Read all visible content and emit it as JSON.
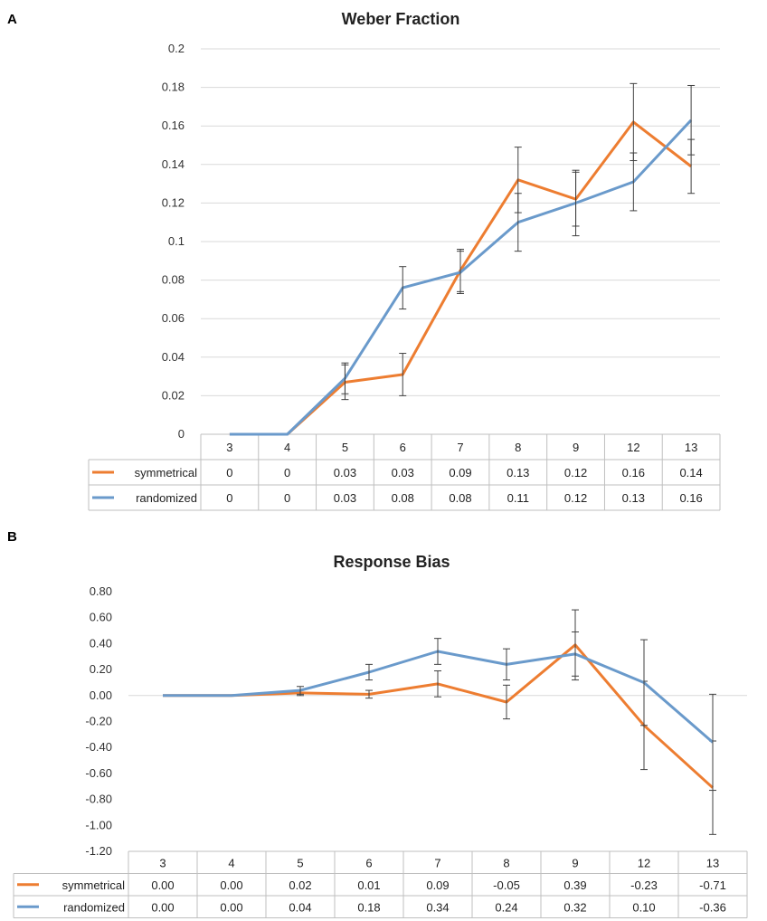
{
  "colors": {
    "symmetrical": "#ED7D31",
    "randomized": "#6A9ACB"
  },
  "chart_data": [
    {
      "type": "line",
      "panel": "A",
      "title": "Weber Fraction",
      "categories": [
        "3",
        "4",
        "5",
        "6",
        "7",
        "8",
        "9",
        "12",
        "13"
      ],
      "ylim": [
        0,
        0.2
      ],
      "yticks": [
        "0",
        "0.02",
        "0.04",
        "0.06",
        "0.08",
        "0.1",
        "0.12",
        "0.14",
        "0.16",
        "0.18",
        "0.2"
      ],
      "grid": true,
      "legend": "data-table",
      "series": [
        {
          "name": "symmetrical",
          "color": "#ED7D31",
          "values": [
            0,
            0,
            0.027,
            0.031,
            0.085,
            0.132,
            0.122,
            0.162,
            0.139
          ],
          "errors": [
            0,
            0,
            0.009,
            0.011,
            0.011,
            0.017,
            0.014,
            0.02,
            0.014
          ],
          "table_values": [
            "0",
            "0",
            "0.03",
            "0.03",
            "0.09",
            "0.13",
            "0.12",
            "0.16",
            "0.14"
          ]
        },
        {
          "name": "randomized",
          "color": "#6A9ACB",
          "values": [
            0,
            0,
            0.029,
            0.076,
            0.084,
            0.11,
            0.12,
            0.131,
            0.163
          ],
          "errors": [
            0,
            0,
            0.008,
            0.011,
            0.011,
            0.015,
            0.017,
            0.015,
            0.018
          ],
          "table_values": [
            "0",
            "0",
            "0.03",
            "0.08",
            "0.08",
            "0.11",
            "0.12",
            "0.13",
            "0.16"
          ]
        }
      ]
    },
    {
      "type": "line",
      "panel": "B",
      "title": "Response Bias",
      "categories": [
        "3",
        "4",
        "5",
        "6",
        "7",
        "8",
        "9",
        "12",
        "13"
      ],
      "ylim": [
        -1.2,
        0.8
      ],
      "yticks": [
        "-1.20",
        "-1.00",
        "-0.80",
        "-0.60",
        "-0.40",
        "-0.20",
        "0.00",
        "0.20",
        "0.40",
        "0.60",
        "0.80"
      ],
      "grid": false,
      "legend": "data-table",
      "series": [
        {
          "name": "symmetrical",
          "color": "#ED7D31",
          "values": [
            0,
            0,
            0.02,
            0.01,
            0.09,
            -0.05,
            0.39,
            -0.23,
            -0.71
          ],
          "errors": [
            0,
            0,
            0.02,
            0.03,
            0.1,
            0.13,
            0.27,
            0.34,
            0.36
          ],
          "table_values": [
            "0.00",
            "0.00",
            "0.02",
            "0.01",
            "0.09",
            "-0.05",
            "0.39",
            "-0.23",
            "-0.71"
          ]
        },
        {
          "name": "randomized",
          "color": "#6A9ACB",
          "values": [
            0,
            0,
            0.04,
            0.18,
            0.34,
            0.24,
            0.32,
            0.1,
            -0.36
          ],
          "errors": [
            0,
            0,
            0.03,
            0.06,
            0.1,
            0.12,
            0.17,
            0.33,
            0.37
          ],
          "table_values": [
            "0.00",
            "0.00",
            "0.04",
            "0.18",
            "0.34",
            "0.24",
            "0.32",
            "0.10",
            "-0.36"
          ]
        }
      ]
    }
  ]
}
